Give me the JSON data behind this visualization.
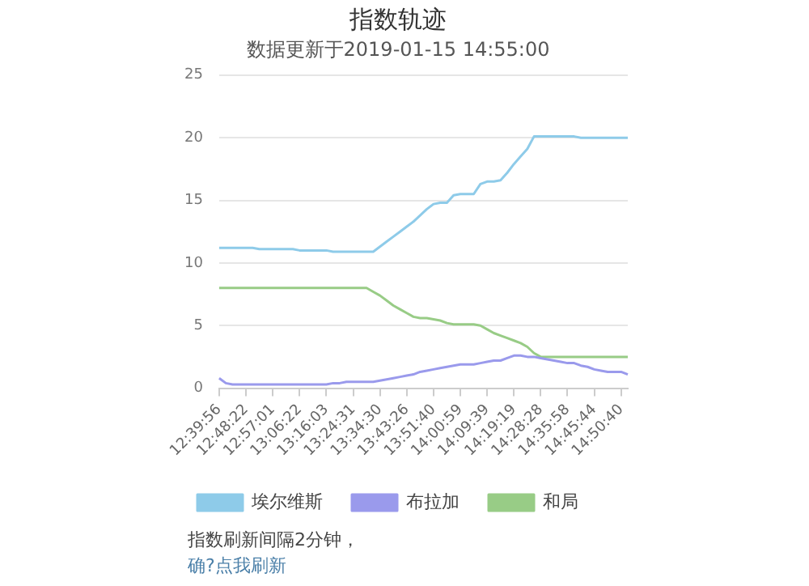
{
  "chart_data": {
    "type": "line",
    "title": "指数轨迹",
    "subtitle": "数据更新于2019-01-15 14:55:00",
    "categories": [
      "12:39:56",
      null,
      null,
      null,
      "12:48:22",
      null,
      null,
      null,
      "12:57:01",
      null,
      null,
      null,
      "13:06:22",
      null,
      null,
      null,
      "13:16:03",
      null,
      null,
      null,
      "13:24:31",
      null,
      null,
      null,
      "13:34:30",
      null,
      null,
      null,
      "13:43:26",
      null,
      null,
      null,
      "13:51:40",
      null,
      null,
      null,
      "14:00:59",
      null,
      null,
      null,
      "14:09:39",
      null,
      null,
      null,
      "14:19:19",
      null,
      null,
      null,
      "14:28:28",
      null,
      null,
      null,
      "14:35:58",
      null,
      null,
      null,
      "14:45:44",
      null,
      null,
      null,
      "14:50:40",
      null
    ],
    "series": [
      {
        "name": "埃尔维斯",
        "color": "#8ecbe9",
        "values": [
          11.2,
          11.2,
          11.2,
          11.2,
          11.2,
          11.2,
          11.1,
          11.1,
          11.1,
          11.1,
          11.1,
          11.1,
          11.0,
          11.0,
          11.0,
          11.0,
          11.0,
          10.9,
          10.9,
          10.9,
          10.9,
          10.9,
          10.9,
          10.9,
          11.3,
          11.7,
          12.1,
          12.5,
          12.9,
          13.3,
          13.8,
          14.3,
          14.7,
          14.8,
          14.8,
          15.4,
          15.5,
          15.5,
          15.5,
          16.3,
          16.5,
          16.5,
          16.6,
          17.2,
          17.9,
          18.5,
          19.1,
          20.1,
          20.1,
          20.1,
          20.1,
          20.1,
          20.1,
          20.1,
          20.0,
          20.0,
          20.0,
          20.0,
          20.0,
          20.0,
          20.0,
          20.0
        ]
      },
      {
        "name": "布拉加",
        "color": "#9a9aec",
        "values": [
          0.8,
          0.4,
          0.3,
          0.3,
          0.3,
          0.3,
          0.3,
          0.3,
          0.3,
          0.3,
          0.3,
          0.3,
          0.3,
          0.3,
          0.3,
          0.3,
          0.3,
          0.4,
          0.4,
          0.5,
          0.5,
          0.5,
          0.5,
          0.5,
          0.6,
          0.7,
          0.8,
          0.9,
          1.0,
          1.1,
          1.3,
          1.4,
          1.5,
          1.6,
          1.7,
          1.8,
          1.9,
          1.9,
          1.9,
          2.0,
          2.1,
          2.2,
          2.2,
          2.4,
          2.6,
          2.6,
          2.5,
          2.5,
          2.4,
          2.3,
          2.2,
          2.1,
          2.0,
          2.0,
          1.8,
          1.7,
          1.5,
          1.4,
          1.3,
          1.3,
          1.3,
          1.1
        ]
      },
      {
        "name": "和局",
        "color": "#98cc86",
        "values": [
          8.0,
          8.0,
          8.0,
          8.0,
          8.0,
          8.0,
          8.0,
          8.0,
          8.0,
          8.0,
          8.0,
          8.0,
          8.0,
          8.0,
          8.0,
          8.0,
          8.0,
          8.0,
          8.0,
          8.0,
          8.0,
          8.0,
          8.0,
          7.7,
          7.4,
          7.0,
          6.6,
          6.3,
          6.0,
          5.7,
          5.6,
          5.6,
          5.5,
          5.4,
          5.2,
          5.1,
          5.1,
          5.1,
          5.1,
          5.0,
          4.7,
          4.4,
          4.2,
          4.0,
          3.8,
          3.6,
          3.3,
          2.8,
          2.5,
          2.5,
          2.5,
          2.5,
          2.5,
          2.5,
          2.5,
          2.5,
          2.5,
          2.5,
          2.5,
          2.5,
          2.5,
          2.5
        ]
      }
    ],
    "ylim": [
      0,
      25
    ],
    "yticks": [
      0,
      5,
      10,
      15,
      20,
      25
    ],
    "grid": "y",
    "legend": "bottom",
    "marker": "none",
    "line_style": "solid",
    "annotations": [
      "指数刷新间隔2分钟，",
      "确?点我刷新"
    ]
  }
}
